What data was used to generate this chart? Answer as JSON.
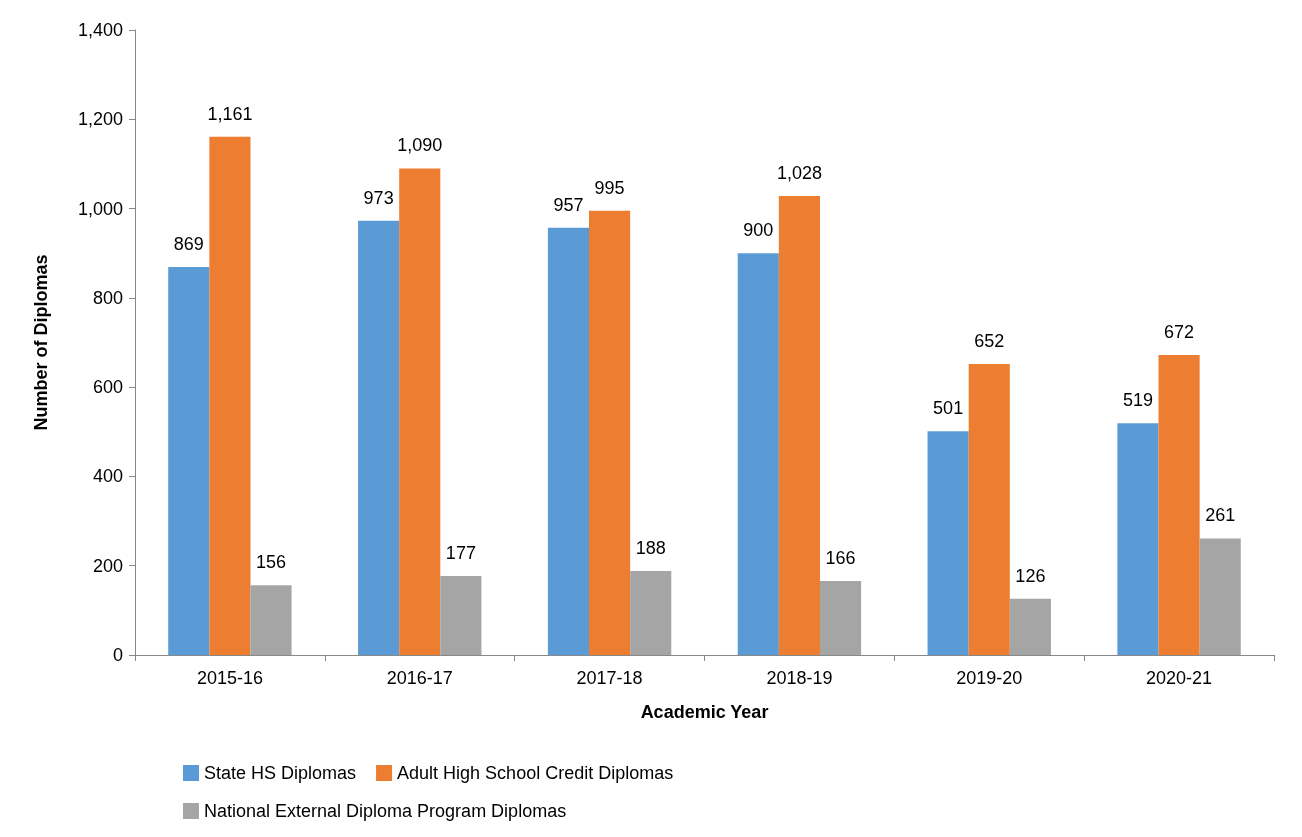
{
  "chart_data": {
    "type": "bar",
    "xlabel": "Academic Year",
    "ylabel": "Number of Diplomas",
    "categories": [
      "2015-16",
      "2016-17",
      "2017-18",
      "2018-19",
      "2019-20",
      "2020-21"
    ],
    "series": [
      {
        "name": "State HS Diplomas",
        "color": "#5b9bd5",
        "values": [
          869,
          973,
          957,
          900,
          501,
          519
        ],
        "value_labels": [
          "869",
          "973",
          "957",
          "900",
          "501",
          "519"
        ]
      },
      {
        "name": "Adult High School Credit Diplomas",
        "color": "#ed7d31",
        "values": [
          1161,
          1090,
          995,
          1028,
          652,
          672
        ],
        "value_labels": [
          "1,161",
          "1,090",
          "995",
          "1,028",
          "652",
          "672"
        ]
      },
      {
        "name": "National External Diploma Program Diplomas",
        "color": "#a5a5a5",
        "values": [
          156,
          177,
          188,
          166,
          126,
          261
        ],
        "value_labels": [
          "156",
          "177",
          "188",
          "166",
          "126",
          "261"
        ]
      }
    ],
    "ylim": [
      0,
      1400
    ],
    "yticks": [
      0,
      200,
      400,
      600,
      800,
      {
        "value": 1000,
        "label": "1,000"
      },
      {
        "value": 1200,
        "label": "1,200"
      },
      {
        "value": 1400,
        "label": "1,400"
      }
    ],
    "grid": false,
    "legend": "bottom"
  }
}
